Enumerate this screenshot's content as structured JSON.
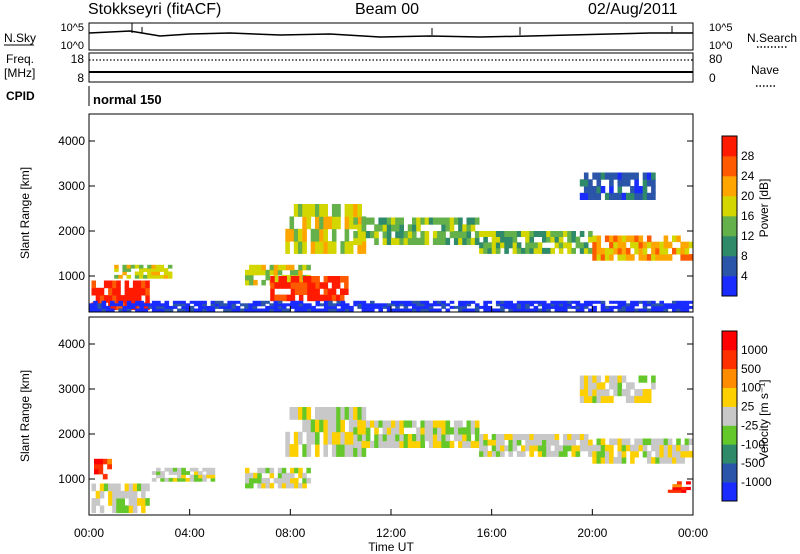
{
  "header": {
    "station": "Stokkseyri (fitACF)",
    "beam": "Beam 00",
    "date": "02/Aug/2011"
  },
  "strips": {
    "nsky_label": "N.Sky",
    "nsky_ticks": [
      "10^5",
      "10^0"
    ],
    "nsearch_label": "N.Search",
    "nsearch_ticks": [
      "10^5",
      "10^0"
    ],
    "freq_label_1": "Freq.",
    "freq_label_2": "[MHz]",
    "freq_ticks": [
      "18",
      "8"
    ],
    "nave_label": "Nave",
    "nave_ticks": [
      "80",
      "0"
    ],
    "cpid_label": "CPID",
    "cpid_value": "normal 150"
  },
  "chart_data": [
    {
      "type": "heatmap",
      "name": "power",
      "ylabel": "Slant Range [km]",
      "ylim": [
        200,
        4600
      ],
      "y_ticks": [
        1000,
        2000,
        3000,
        4000
      ],
      "xlim": [
        0,
        24
      ],
      "colorbar": {
        "label": "Power [dB]",
        "ticks": [
          "4",
          "8",
          "12",
          "16",
          "20",
          "24",
          "28"
        ],
        "colors": [
          "#1a2bff",
          "#2a55a8",
          "#2f8a6a",
          "#64b04a",
          "#d4d600",
          "#ffa500",
          "#ff5a00",
          "#ff1a00"
        ]
      },
      "echo_regions": [
        {
          "t0": 0.1,
          "t1": 2.4,
          "r0": 250,
          "r1": 900,
          "level": 7
        },
        {
          "t0": 1.0,
          "t1": 3.3,
          "r0": 950,
          "r1": 1250,
          "level": 4
        },
        {
          "t0": 6.2,
          "t1": 8.8,
          "r0": 800,
          "r1": 1250,
          "level": 4
        },
        {
          "t0": 7.2,
          "t1": 10.3,
          "r0": 450,
          "r1": 1000,
          "level": 7
        },
        {
          "t0": 7.8,
          "t1": 11.0,
          "r0": 1500,
          "r1": 2600,
          "level": 4
        },
        {
          "t0": 10.5,
          "t1": 15.5,
          "r0": 1700,
          "r1": 2300,
          "level": 3
        },
        {
          "t0": 15.5,
          "t1": 20.0,
          "r0": 1500,
          "r1": 2000,
          "level": 3
        },
        {
          "t0": 20.0,
          "t1": 24.0,
          "r0": 1350,
          "r1": 1900,
          "level": 5
        },
        {
          "t0": 19.5,
          "t1": 22.5,
          "r0": 2700,
          "r1": 3300,
          "level": 1
        },
        {
          "t0": 0.0,
          "t1": 24.0,
          "r0": 220,
          "r1": 450,
          "level": 0
        }
      ]
    },
    {
      "type": "heatmap",
      "name": "velocity",
      "ylabel": "Slant Range [km]",
      "xlabel": "Time UT",
      "ylim": [
        200,
        4600
      ],
      "y_ticks": [
        1000,
        2000,
        3000,
        4000
      ],
      "xlim": [
        0,
        24
      ],
      "x_ticks": [
        "00:00",
        "04:00",
        "08:00",
        "12:00",
        "16:00",
        "20:00",
        "00:00"
      ],
      "colorbar": {
        "label": "Velocity [m s⁻¹]",
        "ticks": [
          "1000",
          "500",
          "100",
          "25",
          "-25",
          "-100",
          "-500",
          "-1000"
        ],
        "colors": [
          "#1a2bff",
          "#2a55a8",
          "#2f8a6a",
          "#64c82a",
          "#c8c8c8",
          "#ffd000",
          "#ff8c00",
          "#ff3000",
          "#ff0000"
        ]
      },
      "echo_regions": [
        {
          "t0": 0.1,
          "t1": 2.4,
          "r0": 250,
          "r1": 900,
          "level": 4
        },
        {
          "t0": 0.2,
          "t1": 0.9,
          "r0": 1000,
          "r1": 1450,
          "level": 7
        },
        {
          "t0": 2.5,
          "t1": 5.0,
          "r0": 950,
          "r1": 1250,
          "level": 4
        },
        {
          "t0": 6.2,
          "t1": 8.8,
          "r0": 800,
          "r1": 1250,
          "level": 4
        },
        {
          "t0": 7.8,
          "t1": 11.0,
          "r0": 1500,
          "r1": 2600,
          "level": 4
        },
        {
          "t0": 10.5,
          "t1": 15.5,
          "r0": 1700,
          "r1": 2300,
          "level": 4
        },
        {
          "t0": 15.5,
          "t1": 20.0,
          "r0": 1500,
          "r1": 2000,
          "level": 4
        },
        {
          "t0": 20.0,
          "t1": 24.0,
          "r0": 1350,
          "r1": 1900,
          "level": 4
        },
        {
          "t0": 19.5,
          "t1": 22.5,
          "r0": 2700,
          "r1": 3300,
          "level": 4
        },
        {
          "t0": 23.0,
          "t1": 23.9,
          "r0": 700,
          "r1": 950,
          "level": 7
        }
      ]
    }
  ]
}
